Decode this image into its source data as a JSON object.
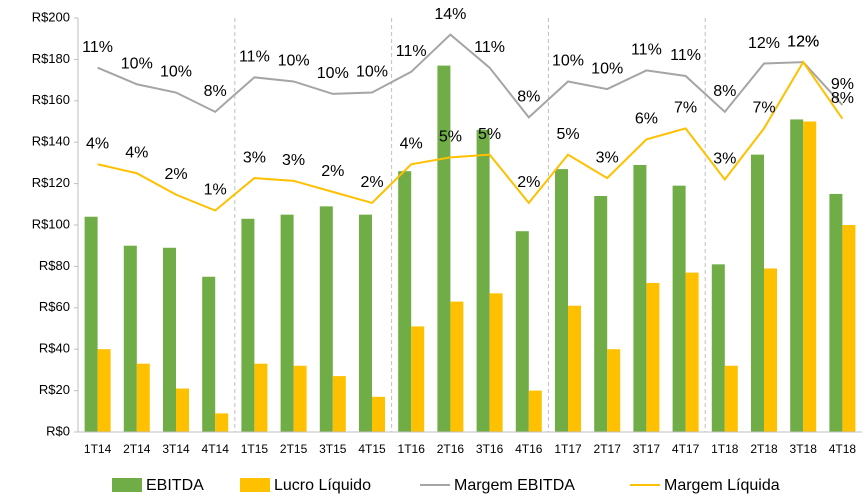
{
  "chart_data": {
    "type": "bar",
    "categories": [
      "1T14",
      "2T14",
      "3T14",
      "4T14",
      "1T15",
      "2T15",
      "3T15",
      "4T15",
      "1T16",
      "2T16",
      "3T16",
      "4T16",
      "1T17",
      "2T17",
      "3T17",
      "4T17",
      "1T18",
      "2T18",
      "3T18",
      "4T18"
    ],
    "series": [
      {
        "name": "EBITDA",
        "type": "bar",
        "color": "#70ad47",
        "values": [
          104,
          90,
          89,
          75,
          103,
          105,
          109,
          105,
          126,
          177,
          146,
          97,
          127,
          114,
          129,
          119,
          81,
          134,
          151,
          115
        ]
      },
      {
        "name": "Lucro Líquido",
        "type": "bar",
        "color": "#ffc000",
        "values": [
          40,
          33,
          21,
          9,
          33,
          32,
          27,
          17,
          51,
          63,
          67,
          20,
          61,
          40,
          72,
          77,
          32,
          79,
          150,
          100
        ]
      },
      {
        "name": "Margem EBITDA",
        "type": "line",
        "axis": "y2",
        "color": "#a5a5a5",
        "values": [
          11.4,
          10.2,
          9.6,
          8.2,
          10.7,
          10.4,
          9.5,
          9.6,
          11.1,
          13.8,
          11.4,
          7.8,
          10.4,
          9.85,
          11.2,
          10.8,
          8.2,
          11.7,
          11.8,
          8.7
        ],
        "value_labels": [
          "11%",
          "10%",
          "10%",
          "8%",
          "11%",
          "10%",
          "10%",
          "10%",
          "11%",
          "14%",
          "11%",
          "8%",
          "10%",
          "10%",
          "11%",
          "11%",
          "8%",
          "12%",
          "12%",
          "9%"
        ]
      },
      {
        "name": "Margem Líquida",
        "type": "line",
        "axis": "y2",
        "color": "#ffc000",
        "values": [
          4.4,
          3.75,
          2.2,
          1.05,
          3.4,
          3.2,
          2.4,
          1.6,
          4.4,
          4.9,
          5.1,
          1.6,
          5.1,
          3.4,
          6.2,
          7.0,
          3.3,
          7.0,
          11.8,
          7.7
        ],
        "value_labels": [
          "4%",
          "4%",
          "2%",
          "1%",
          "3%",
          "3%",
          "2%",
          "2%",
          "4%",
          "5%",
          "5%",
          "2%",
          "5%",
          "3%",
          "6%",
          "7%",
          "3%",
          "7%",
          "12%",
          "8%"
        ]
      }
    ],
    "ylim": [
      0,
      200
    ],
    "yticks": [
      {
        "value": 0,
        "label": "R$0"
      },
      {
        "value": 20,
        "label": "R$20"
      },
      {
        "value": 40,
        "label": "R$40"
      },
      {
        "value": 60,
        "label": "R$60"
      },
      {
        "value": 80,
        "label": "R$80"
      },
      {
        "value": 100,
        "label": "R$100"
      },
      {
        "value": 120,
        "label": "R$120"
      },
      {
        "value": 140,
        "label": "R$140"
      },
      {
        "value": 160,
        "label": "R$160"
      },
      {
        "value": 180,
        "label": "R$180"
      },
      {
        "value": 200,
        "label": "R$200"
      }
    ],
    "y2lim": [
      -15,
      15
    ],
    "legend": "bottom"
  }
}
